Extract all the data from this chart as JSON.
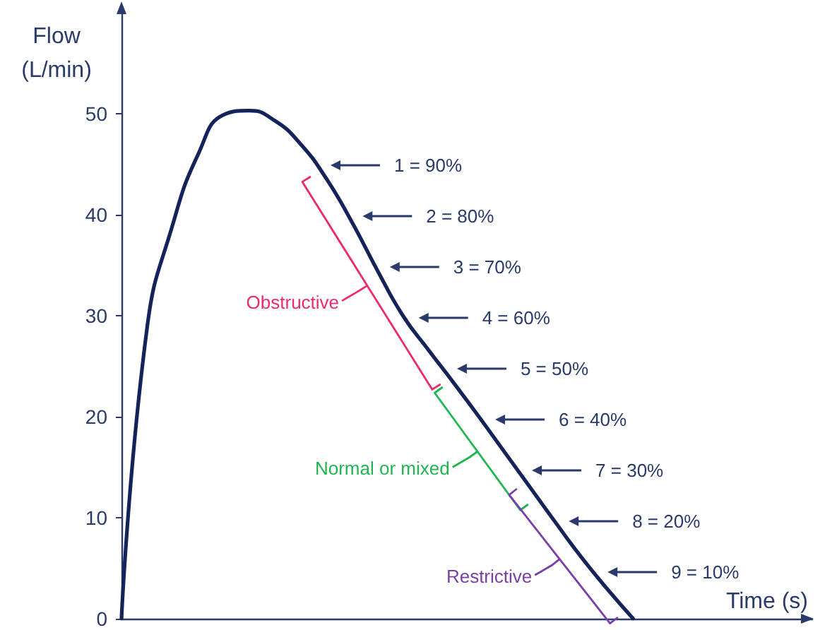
{
  "chart_data": {
    "type": "line",
    "xlabel": "Time (s)",
    "ylabel": "Flow\n(L/min)",
    "categories": [
      null,
      null,
      null,
      null,
      null,
      null,
      null,
      null,
      null,
      null,
      null,
      null,
      null,
      null,
      null,
      null,
      null,
      null,
      null,
      null,
      null,
      null,
      null,
      null,
      null,
      null,
      null,
      null
    ],
    "series": [
      {
        "color": "#14245a",
        "values": [
          0,
          28.8,
          39,
          46,
          49.9,
          50.3,
          49.3,
          47,
          43.6,
          39.3,
          34.5,
          30,
          26.6,
          23.3,
          19.9,
          16.4,
          12.9,
          9.4,
          6,
          2.9,
          0,
          null,
          null,
          null,
          null,
          null,
          null,
          null
        ]
      }
    ],
    "ylim": [
      0,
      60
    ],
    "yticks": [
      0,
      10,
      20,
      30,
      40,
      50
    ],
    "grid": false,
    "marker": "none",
    "line_style": "solid",
    "annotations": [
      "1 = 90%",
      "2 = 80%",
      "3 = 70%",
      "4 = 60%",
      "5 = 50%",
      "6 = 40%",
      "7 = 30%",
      "8 = 20%",
      "9 = 10%",
      "Obstructive",
      "Normal or mixed",
      "Restrictive"
    ]
  }
}
